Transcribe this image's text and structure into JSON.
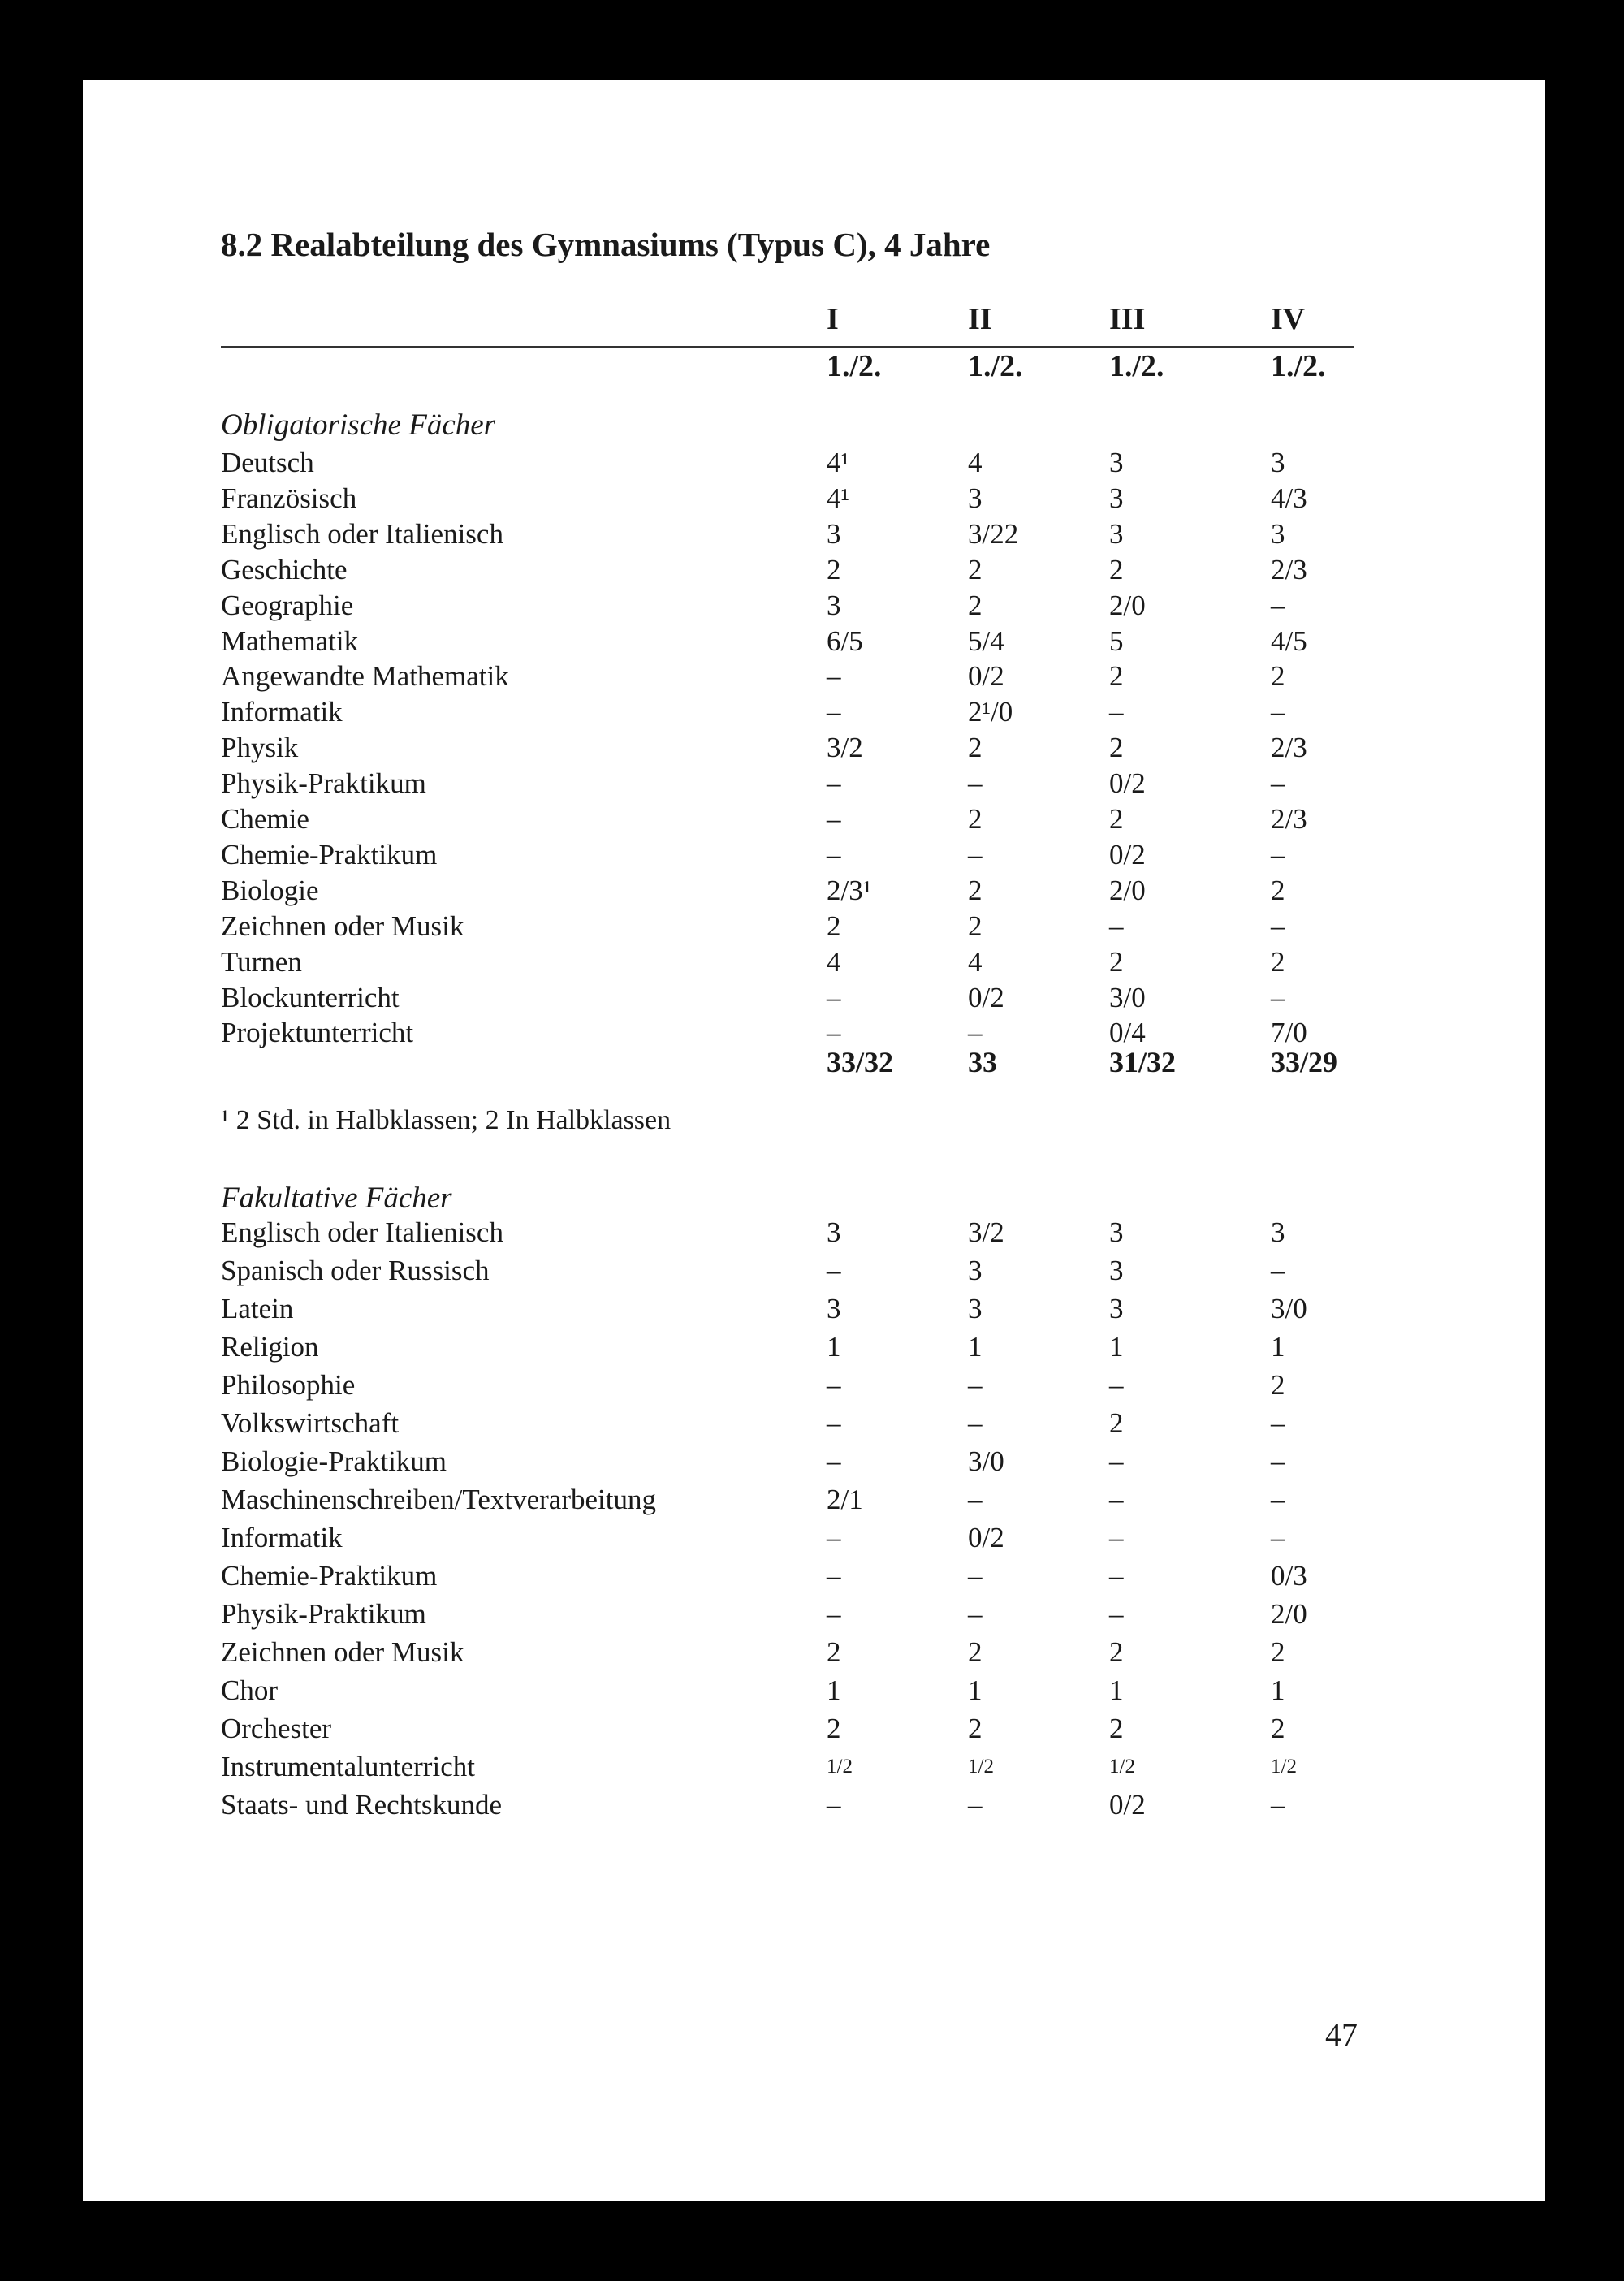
{
  "title": "8.2 Realabteilung des Gymnasiums (Typus C), 4 Jahre",
  "columns": [
    "I",
    "II",
    "III",
    "IV"
  ],
  "subcolumns": [
    "1./2.",
    "1./2.",
    "1./2.",
    "1./2."
  ],
  "obligatory": {
    "heading": "Obligatorische Fächer",
    "rows": [
      [
        "Deutsch",
        "4¹",
        "4",
        "3",
        "3"
      ],
      [
        "Französisch",
        "4¹",
        "3",
        "3",
        "4/3"
      ],
      [
        "Englisch oder Italienisch",
        "3",
        "3/22",
        "3",
        "3"
      ],
      [
        "Geschichte",
        "2",
        "2",
        "2",
        "2/3"
      ],
      [
        "Geographie",
        "3",
        "2",
        "2/0",
        "–"
      ],
      [
        "Mathematik",
        "6/5",
        "5/4",
        "5",
        "4/5"
      ],
      [
        "Angewandte Mathematik",
        "–",
        "0/2",
        "2",
        "2"
      ],
      [
        "Informatik",
        "–",
        "2¹/0",
        "–",
        "–"
      ],
      [
        "Physik",
        "3/2",
        "2",
        "2",
        "2/3"
      ],
      [
        "Physik-Praktikum",
        "–",
        "–",
        "0/2",
        "–"
      ],
      [
        "Chemie",
        "–",
        "2",
        "2",
        "2/3"
      ],
      [
        "Chemie-Praktikum",
        "–",
        "–",
        "0/2",
        "–"
      ],
      [
        "Biologie",
        "2/3¹",
        "2",
        "2/0",
        "2"
      ],
      [
        "Zeichnen oder Musik",
        "2",
        "2",
        "–",
        "–"
      ],
      [
        "Turnen",
        "4",
        "4",
        "2",
        "2"
      ],
      [
        "Blockunterricht",
        "–",
        "0/2",
        "3/0",
        "–"
      ],
      [
        "Projektunterricht",
        "–",
        "–",
        "0/4",
        "7/0"
      ]
    ],
    "totals": [
      "33/32",
      "33",
      "31/32",
      "33/29"
    ]
  },
  "footnote": "¹ 2 Std. in Halbklassen; 2 In Halbklassen",
  "optional": {
    "heading": "Fakultative Fächer",
    "rows": [
      [
        "Englisch oder Italienisch",
        "3",
        "3/2",
        "3",
        "3"
      ],
      [
        "Spanisch oder Russisch",
        "–",
        "3",
        "3",
        "–"
      ],
      [
        "Latein",
        "3",
        "3",
        "3",
        "3/0"
      ],
      [
        "Religion",
        "1",
        "1",
        "1",
        "1"
      ],
      [
        "Philosophie",
        "–",
        "–",
        "–",
        "2"
      ],
      [
        "Volkswirtschaft",
        "–",
        "–",
        "2",
        "–"
      ],
      [
        "Biologie-Praktikum",
        "–",
        "3/0",
        "–",
        "–"
      ],
      [
        "Maschinenschreiben/Textverarbeitung",
        "2/1",
        "–",
        "–",
        "–"
      ],
      [
        "Informatik",
        "–",
        "0/2",
        "–",
        "–"
      ],
      [
        "Chemie-Praktikum",
        "–",
        "–",
        "–",
        "0/3"
      ],
      [
        "Physik-Praktikum",
        "–",
        "–",
        "–",
        "2/0"
      ],
      [
        "Zeichnen oder Musik",
        "2",
        "2",
        "2",
        "2"
      ],
      [
        "Chor",
        "1",
        "1",
        "1",
        "1"
      ],
      [
        "Orchester",
        "2",
        "2",
        "2",
        "2"
      ],
      [
        "Instrumentalunterricht",
        "1/2",
        "1/2",
        "1/2",
        "1/2"
      ],
      [
        "Staats- und Rechtskunde",
        "–",
        "–",
        "0/2",
        "–"
      ]
    ]
  },
  "page_number": "47"
}
